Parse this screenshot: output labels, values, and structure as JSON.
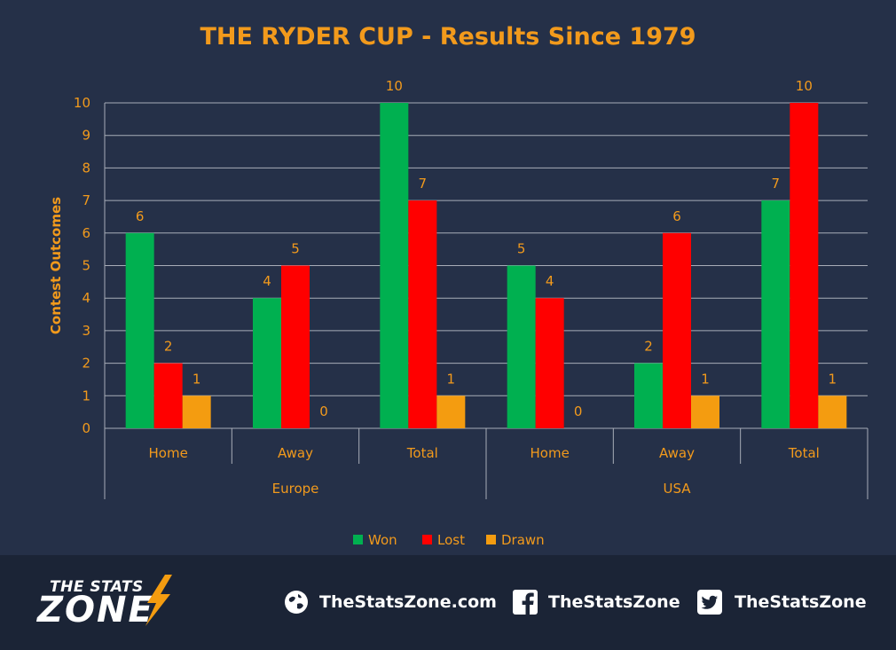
{
  "chart_data": {
    "type": "bar",
    "title": "THE RYDER CUP - Results Since 1979",
    "ylabel": "Contest Outcomes",
    "xlabel": "",
    "ylim": [
      0,
      10
    ],
    "yticks": [
      0,
      1,
      2,
      3,
      4,
      5,
      6,
      7,
      8,
      9,
      10
    ],
    "grid": true,
    "legend_position": "bottom",
    "groups": [
      {
        "name": "Europe",
        "categories": [
          "Home",
          "Away",
          "Total"
        ]
      },
      {
        "name": "USA",
        "categories": [
          "Home",
          "Away",
          "Total"
        ]
      }
    ],
    "categories": [
      "Home",
      "Away",
      "Total",
      "Home",
      "Away",
      "Total"
    ],
    "series": [
      {
        "name": "Won",
        "color": "#00b050",
        "values": [
          6,
          4,
          10,
          5,
          2,
          7
        ]
      },
      {
        "name": "Lost",
        "color": "#ff0000",
        "values": [
          2,
          5,
          7,
          4,
          6,
          10
        ]
      },
      {
        "name": "Drawn",
        "color": "#f49c10",
        "values": [
          1,
          0,
          1,
          0,
          1,
          1
        ]
      }
    ],
    "label_color": "#f29a1c"
  },
  "footer": {
    "brand_top": "THE STATS",
    "brand_main": "ZONE",
    "website": "TheStatsZone.com",
    "facebook": "TheStatsZone",
    "twitter": "TheStatsZone",
    "icons": [
      "globe-icon",
      "facebook-icon",
      "twitter-icon"
    ]
  }
}
